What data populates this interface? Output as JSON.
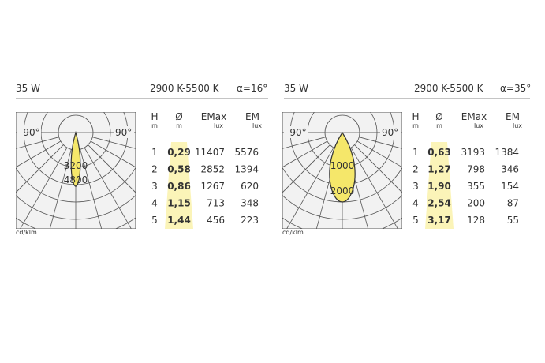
{
  "panels": [
    {
      "power": "35 W",
      "cct": "2900 K-5500 K",
      "angle": "α=16°",
      "diagram": {
        "left_label": "-90°",
        "right_label": "90°",
        "ring_labels": [
          "3200",
          "4800"
        ],
        "unit": "cd/klm"
      },
      "table": {
        "headers": [
          [
            "H",
            "m"
          ],
          [
            "Ø",
            "m"
          ],
          [
            "EMax",
            "lux"
          ],
          [
            "EM",
            "lux"
          ]
        ],
        "rows": [
          [
            "1",
            "0,29",
            "11407",
            "5576"
          ],
          [
            "2",
            "0,58",
            "2852",
            "1394"
          ],
          [
            "3",
            "0,86",
            "1267",
            "620"
          ],
          [
            "4",
            "1,15",
            "713",
            "348"
          ],
          [
            "5",
            "1,44",
            "456",
            "223"
          ]
        ]
      }
    },
    {
      "power": "35 W",
      "cct": "2900 K-5500 K",
      "angle": "α=35°",
      "diagram": {
        "left_label": "-90°",
        "right_label": "90°",
        "ring_labels": [
          "1000",
          "2000"
        ],
        "unit": "cd/klm"
      },
      "table": {
        "headers": [
          [
            "H",
            "m"
          ],
          [
            "Ø",
            "m"
          ],
          [
            "EMax",
            "lux"
          ],
          [
            "EM",
            "lux"
          ]
        ],
        "rows": [
          [
            "1",
            "0,63",
            "3193",
            "1384"
          ],
          [
            "2",
            "1,27",
            "798",
            "346"
          ],
          [
            "3",
            "1,90",
            "355",
            "154"
          ],
          [
            "4",
            "2,54",
            "200",
            "87"
          ],
          [
            "5",
            "3,17",
            "128",
            "55"
          ]
        ]
      }
    }
  ]
}
